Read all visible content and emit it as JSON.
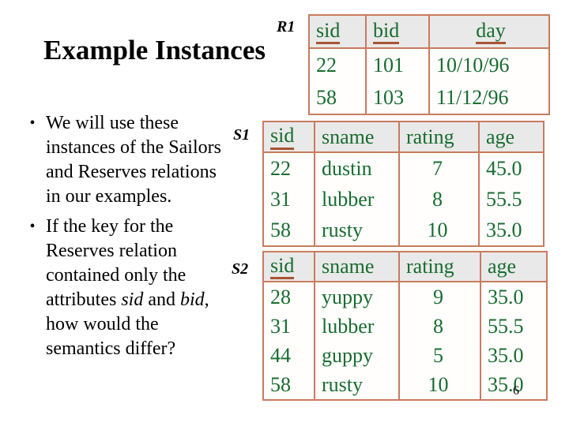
{
  "slide": {
    "title": "Example Instances",
    "page_number": "6"
  },
  "colors": {
    "table_text_green": "#186c30",
    "table_border_salmon": "#c87b5e",
    "key_underline": "#a85432",
    "header_row_bg": "#e9e9e9"
  },
  "bullets": [
    {
      "runs": [
        {
          "text": "We will use these instances of the Sailors and Reserves relations in our examples.",
          "italic": false
        }
      ]
    },
    {
      "runs": [
        {
          "text": "If the key for the Reserves relation contained only the attributes ",
          "italic": false
        },
        {
          "text": "sid",
          "italic": true
        },
        {
          "text": " and ",
          "italic": false
        },
        {
          "text": "bid",
          "italic": true
        },
        {
          "text": ", how would the semantics differ?",
          "italic": false
        }
      ]
    }
  ],
  "tables": [
    {
      "id": "R1",
      "label": "R1",
      "headers": [
        {
          "text": "sid",
          "key": true
        },
        {
          "text": "bid",
          "key": true
        },
        {
          "text": "day",
          "key": true
        }
      ],
      "rows": [
        [
          "22",
          "101",
          "10/10/96"
        ],
        [
          "58",
          "103",
          "11/12/96"
        ]
      ]
    },
    {
      "id": "S1",
      "label": "S1",
      "headers": [
        {
          "text": "sid",
          "key": true
        },
        {
          "text": "sname",
          "key": false
        },
        {
          "text": "rating",
          "key": false
        },
        {
          "text": "age",
          "key": false
        }
      ],
      "rows": [
        [
          "22",
          "dustin",
          "7",
          "45.0"
        ],
        [
          "31",
          "lubber",
          "8",
          "55.5"
        ],
        [
          "58",
          "rusty",
          "10",
          "35.0"
        ]
      ]
    },
    {
      "id": "S2",
      "label": "S2",
      "headers": [
        {
          "text": "sid",
          "key": true
        },
        {
          "text": "sname",
          "key": false
        },
        {
          "text": "rating",
          "key": false
        },
        {
          "text": "age",
          "key": false
        }
      ],
      "rows": [
        [
          "28",
          "yuppy",
          "9",
          "35.0"
        ],
        [
          "31",
          "lubber",
          "8",
          "55.5"
        ],
        [
          "44",
          "guppy",
          "5",
          "35.0"
        ],
        [
          "58",
          "rusty",
          "10",
          "35.0"
        ]
      ]
    }
  ]
}
